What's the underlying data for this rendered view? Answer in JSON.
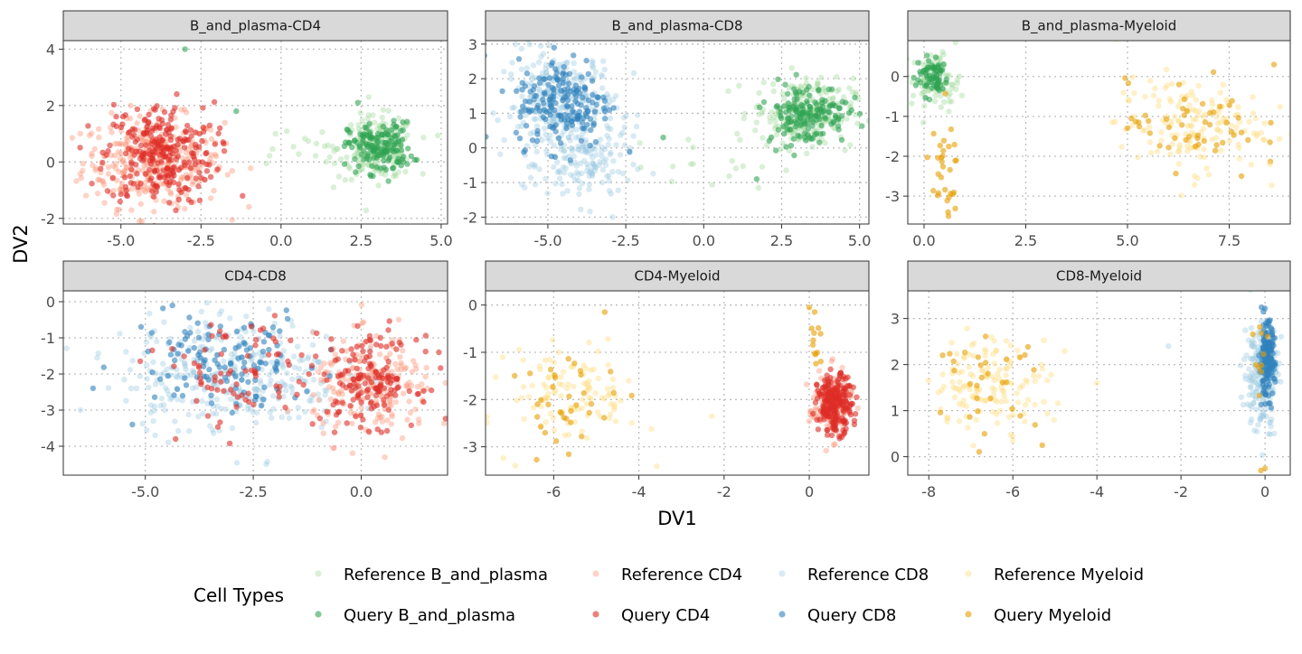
{
  "chart_data": {
    "type": "scatter",
    "xlabel": "DV1",
    "ylabel": "DV2",
    "legend": {
      "title": "Cell Types",
      "placement": "bottom",
      "entries": [
        {
          "label": "Reference B_and_plasma",
          "color": "#a1d99b",
          "alpha": 0.4
        },
        {
          "label": "Reference CD4",
          "color": "#fc9272",
          "alpha": 0.4
        },
        {
          "label": "Reference CD8",
          "color": "#9ecae1",
          "alpha": 0.4
        },
        {
          "label": "Reference Myeloid",
          "color": "#fed976",
          "alpha": 0.4
        },
        {
          "label": "Query B_and_plasma",
          "color": "#31a354",
          "alpha": 0.6
        },
        {
          "label": "Query CD4",
          "color": "#de2d26",
          "alpha": 0.6
        },
        {
          "label": "Query CD8",
          "color": "#3182bd",
          "alpha": 0.6
        },
        {
          "label": "Query Myeloid",
          "color": "#e69f00",
          "alpha": 0.6
        }
      ]
    },
    "grid": true,
    "panels": [
      {
        "title": "B_and_plasma-CD4",
        "xlim": [
          -6.8,
          5.2
        ],
        "ylim": [
          -2.2,
          4.3
        ],
        "xticks": [
          {
            "v": -5,
            "l": "-5.0"
          },
          {
            "v": -2.5,
            "l": "-2.5"
          },
          {
            "v": 0,
            "l": "0.0"
          },
          {
            "v": 2.5,
            "l": "2.5"
          },
          {
            "v": 5,
            "l": "5.0"
          }
        ],
        "yticks": [
          {
            "v": -2,
            "l": "-2"
          },
          {
            "v": 0,
            "l": "0"
          },
          {
            "v": 2,
            "l": "2"
          },
          {
            "v": 4,
            "l": "4"
          }
        ],
        "clusters": [
          {
            "series": 1,
            "n": 320,
            "cx": -4.0,
            "cy": 0.0,
            "sx": 1.1,
            "sy": 0.8
          },
          {
            "series": 0,
            "n": 220,
            "cx": 3.0,
            "cy": 0.5,
            "sx": 0.6,
            "sy": 0.55
          },
          {
            "series": 0,
            "n": 14,
            "cx": 0.3,
            "cy": 0.4,
            "sx": 0.9,
            "sy": 0.4
          },
          {
            "series": 5,
            "n": 260,
            "cx": -3.8,
            "cy": 0.3,
            "sx": 0.85,
            "sy": 0.9
          },
          {
            "series": 4,
            "n": 150,
            "cx": 3.1,
            "cy": 0.5,
            "sx": 0.5,
            "sy": 0.45
          }
        ],
        "points": [
          {
            "series": 4,
            "x": -3.0,
            "y": 4.0
          },
          {
            "series": 4,
            "x": -1.4,
            "y": 1.8
          },
          {
            "series": 4,
            "x": 2.4,
            "y": 2.1
          },
          {
            "series": 5,
            "x": -1.2,
            "y": -1.2
          }
        ]
      },
      {
        "title": "B_and_plasma-CD8",
        "xlim": [
          -7.0,
          5.3
        ],
        "ylim": [
          -2.2,
          3.1
        ],
        "xticks": [
          {
            "v": -5,
            "l": "-5.0"
          },
          {
            "v": -2.5,
            "l": "-2.5"
          },
          {
            "v": 0,
            "l": "0.0"
          },
          {
            "v": 2.5,
            "l": "2.5"
          },
          {
            "v": 5,
            "l": "5.0"
          }
        ],
        "yticks": [
          {
            "v": -2,
            "l": "-2"
          },
          {
            "v": -1,
            "l": "-1"
          },
          {
            "v": 0,
            "l": "0"
          },
          {
            "v": 1,
            "l": "1"
          },
          {
            "v": 2,
            "l": "2"
          },
          {
            "v": 3,
            "l": "3"
          }
        ],
        "clusters": [
          {
            "series": 2,
            "n": 300,
            "cx": -4.6,
            "cy": 1.2,
            "sx": 0.9,
            "sy": 0.8
          },
          {
            "series": 2,
            "n": 120,
            "cx": -3.7,
            "cy": -0.5,
            "sx": 0.7,
            "sy": 0.6
          },
          {
            "series": 0,
            "n": 230,
            "cx": 3.2,
            "cy": 1.0,
            "sx": 0.8,
            "sy": 0.5
          },
          {
            "series": 0,
            "n": 16,
            "cx": 0.4,
            "cy": -0.5,
            "sx": 1.0,
            "sy": 0.35
          },
          {
            "series": 6,
            "n": 180,
            "cx": -4.5,
            "cy": 1.3,
            "sx": 0.75,
            "sy": 0.65
          },
          {
            "series": 4,
            "n": 160,
            "cx": 3.3,
            "cy": 1.0,
            "sx": 0.65,
            "sy": 0.45
          }
        ],
        "points": [
          {
            "series": 6,
            "x": -4.8,
            "y": 2.9
          },
          {
            "series": 4,
            "x": -1.3,
            "y": 0.3
          },
          {
            "series": 4,
            "x": 1.7,
            "y": -0.9
          }
        ]
      },
      {
        "title": "B_and_plasma-Myeloid",
        "xlim": [
          -0.4,
          9.0
        ],
        "ylim": [
          -3.7,
          0.9
        ],
        "xticks": [
          {
            "v": 0,
            "l": "0.0"
          },
          {
            "v": 2.5,
            "l": "2.5"
          },
          {
            "v": 5,
            "l": "5.0"
          },
          {
            "v": 7.5,
            "l": "7.5"
          }
        ],
        "yticks": [
          {
            "v": -3,
            "l": "-3"
          },
          {
            "v": -2,
            "l": "-2"
          },
          {
            "v": -1,
            "l": "-1"
          },
          {
            "v": 0,
            "l": "0"
          }
        ],
        "clusters": [
          {
            "series": 0,
            "n": 90,
            "cx": 0.3,
            "cy": -0.1,
            "sx": 0.3,
            "sy": 0.35
          },
          {
            "series": 3,
            "n": 150,
            "cx": 6.5,
            "cy": -1.2,
            "sx": 0.9,
            "sy": 0.6
          },
          {
            "series": 4,
            "n": 70,
            "cx": 0.2,
            "cy": 0.0,
            "sx": 0.2,
            "sy": 0.25
          },
          {
            "series": 7,
            "n": 30,
            "cx": 0.45,
            "cy": -2.4,
            "sx": 0.2,
            "sy": 0.55
          },
          {
            "series": 7,
            "n": 50,
            "cx": 6.6,
            "cy": -1.2,
            "sx": 0.8,
            "sy": 0.55
          }
        ],
        "points": [
          {
            "series": 7,
            "x": 0.6,
            "y": -3.5
          },
          {
            "series": 7,
            "x": 7.8,
            "y": -2.5
          },
          {
            "series": 3,
            "x": 8.5,
            "y": -2.2
          },
          {
            "series": 7,
            "x": 8.6,
            "y": 0.3
          }
        ]
      },
      {
        "title": "CD4-CD8",
        "xlim": [
          -6.9,
          2.0
        ],
        "ylim": [
          -4.8,
          0.3
        ],
        "xticks": [
          {
            "v": -5,
            "l": "-5.0"
          },
          {
            "v": -2.5,
            "l": "-2.5"
          },
          {
            "v": 0,
            "l": "0.0"
          }
        ],
        "yticks": [
          {
            "v": -4,
            "l": "-4"
          },
          {
            "v": -3,
            "l": "-3"
          },
          {
            "v": -2,
            "l": "-2"
          },
          {
            "v": -1,
            "l": "-1"
          },
          {
            "v": 0,
            "l": "0"
          }
        ],
        "clusters": [
          {
            "series": 2,
            "n": 330,
            "cx": -3.0,
            "cy": -2.0,
            "sx": 1.3,
            "sy": 0.8
          },
          {
            "series": 1,
            "n": 200,
            "cx": 0.3,
            "cy": -2.4,
            "sx": 0.7,
            "sy": 0.7
          },
          {
            "series": 6,
            "n": 120,
            "cx": -3.2,
            "cy": -1.6,
            "sx": 1.1,
            "sy": 0.7
          },
          {
            "series": 5,
            "n": 150,
            "cx": 0.2,
            "cy": -2.2,
            "sx": 0.55,
            "sy": 0.6
          },
          {
            "series": 5,
            "n": 80,
            "cx": -2.8,
            "cy": -2.0,
            "sx": 1.0,
            "sy": 0.8
          }
        ],
        "points": [
          {
            "series": 2,
            "x": -6.5,
            "y": -3.0
          },
          {
            "series": 6,
            "x": -5.3,
            "y": -3.4
          },
          {
            "series": 5,
            "x": -4.3,
            "y": -3.8
          },
          {
            "series": 5,
            "x": 1.8,
            "y": -1.4
          }
        ]
      },
      {
        "title": "CD4-Myeloid",
        "xlim": [
          -7.6,
          1.4
        ],
        "ylim": [
          -3.6,
          0.3
        ],
        "xticks": [
          {
            "v": -6,
            "l": "-6"
          },
          {
            "v": -4,
            "l": "-4"
          },
          {
            "v": -2,
            "l": "-2"
          },
          {
            "v": 0,
            "l": "0"
          }
        ],
        "yticks": [
          {
            "v": -3,
            "l": "-3"
          },
          {
            "v": -2,
            "l": "-2"
          },
          {
            "v": -1,
            "l": "-1"
          },
          {
            "v": 0,
            "l": "0"
          }
        ],
        "clusters": [
          {
            "series": 3,
            "n": 110,
            "cx": -5.5,
            "cy": -1.9,
            "sx": 0.75,
            "sy": 0.5
          },
          {
            "series": 1,
            "n": 120,
            "cx": 0.5,
            "cy": -2.1,
            "sx": 0.25,
            "sy": 0.35
          },
          {
            "series": 5,
            "n": 220,
            "cx": 0.6,
            "cy": -2.1,
            "sx": 0.2,
            "sy": 0.3
          },
          {
            "series": 7,
            "n": 35,
            "cx": -5.6,
            "cy": -2.1,
            "sx": 0.6,
            "sy": 0.5
          },
          {
            "series": 7,
            "n": 12,
            "cx": 0.15,
            "cy": -0.7,
            "sx": 0.08,
            "sy": 0.4
          }
        ],
        "points": [
          {
            "series": 7,
            "x": -4.8,
            "y": -0.15
          },
          {
            "series": 7,
            "x": 0.0,
            "y": -0.05
          },
          {
            "series": 3,
            "x": -6.9,
            "y": -3.4
          }
        ]
      },
      {
        "title": "CD8-Myeloid",
        "xlim": [
          -8.5,
          0.6
        ],
        "ylim": [
          -0.4,
          3.6
        ],
        "xticks": [
          {
            "v": -8,
            "l": "-8"
          },
          {
            "v": -6,
            "l": "-6"
          },
          {
            "v": -4,
            "l": "-4"
          },
          {
            "v": -2,
            "l": "-2"
          },
          {
            "v": 0,
            "l": "0"
          }
        ],
        "yticks": [
          {
            "v": 0,
            "l": "0"
          },
          {
            "v": 1,
            "l": "1"
          },
          {
            "v": 2,
            "l": "2"
          },
          {
            "v": 3,
            "l": "3"
          }
        ],
        "clusters": [
          {
            "series": 3,
            "n": 140,
            "cx": -6.5,
            "cy": 1.6,
            "sx": 0.7,
            "sy": 0.5
          },
          {
            "series": 2,
            "n": 200,
            "cx": -0.1,
            "cy": 1.8,
            "sx": 0.2,
            "sy": 0.6
          },
          {
            "series": 6,
            "n": 160,
            "cx": 0.05,
            "cy": 2.1,
            "sx": 0.09,
            "sy": 0.4
          },
          {
            "series": 7,
            "n": 30,
            "cx": -6.6,
            "cy": 1.6,
            "sx": 0.6,
            "sy": 0.45
          },
          {
            "series": 7,
            "n": 10,
            "cx": -0.05,
            "cy": 2.2,
            "sx": 0.1,
            "sy": 0.6
          }
        ],
        "points": [
          {
            "series": 7,
            "x": -0.1,
            "y": -0.3
          },
          {
            "series": 7,
            "x": 0.0,
            "y": -0.25
          },
          {
            "series": 2,
            "x": -2.3,
            "y": 2.4
          },
          {
            "series": 3,
            "x": -4.0,
            "y": 1.6
          },
          {
            "series": 7,
            "x": -5.3,
            "y": 0.25
          }
        ]
      }
    ]
  }
}
